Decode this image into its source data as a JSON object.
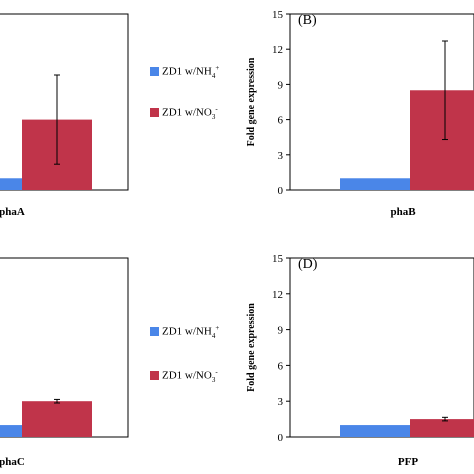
{
  "colors": {
    "nh4": "#4a86e8",
    "no3": "#c0344a"
  },
  "legend": {
    "nh4": {
      "main": "ZD1 w/NH",
      "sub": "4",
      "sup": "+"
    },
    "no3": {
      "main": "ZD1 w/NO",
      "sub": "3",
      "sup": "-"
    }
  },
  "chart_data": [
    {
      "type": "bar",
      "panel": "A",
      "panel_label": "",
      "xlabel": "phaA",
      "ylabel": "",
      "series": [
        {
          "name": "ZD1 w/NH4+",
          "values": [
            1.0
          ]
        },
        {
          "name": "ZD1 w/NO3-",
          "values": [
            6.0
          ],
          "error": [
            3.8
          ]
        }
      ]
    },
    {
      "type": "bar",
      "panel": "B",
      "panel_label": "(B)",
      "xlabel": "phaB",
      "ylabel": "Fold gene expression",
      "ylim": [
        0,
        15
      ],
      "yticks": [
        "0",
        "3",
        "6",
        "9",
        "12",
        "15"
      ],
      "series": [
        {
          "name": "ZD1 w/NH4+",
          "values": [
            1.0
          ]
        },
        {
          "name": "ZD1 w/NO3-",
          "values": [
            8.5
          ],
          "error": [
            4.2
          ]
        }
      ]
    },
    {
      "type": "bar",
      "panel": "C",
      "panel_label": "",
      "xlabel": "phaC",
      "ylabel": "",
      "series": [
        {
          "name": "ZD1 w/NH4+",
          "values": [
            1.0
          ]
        },
        {
          "name": "ZD1 w/NO3-",
          "values": [
            3.0
          ],
          "error": [
            0.15
          ]
        }
      ]
    },
    {
      "type": "bar",
      "panel": "D",
      "panel_label": "(D)",
      "xlabel": "PFP",
      "ylabel": "Fold gene expression",
      "ylim": [
        0,
        15
      ],
      "yticks": [
        "0",
        "3",
        "6",
        "9",
        "12",
        "15"
      ],
      "series": [
        {
          "name": "ZD1 w/NH4+",
          "values": [
            1.0
          ]
        },
        {
          "name": "ZD1 w/NO3-",
          "values": [
            1.5
          ],
          "error": [
            0.15
          ]
        }
      ]
    }
  ]
}
